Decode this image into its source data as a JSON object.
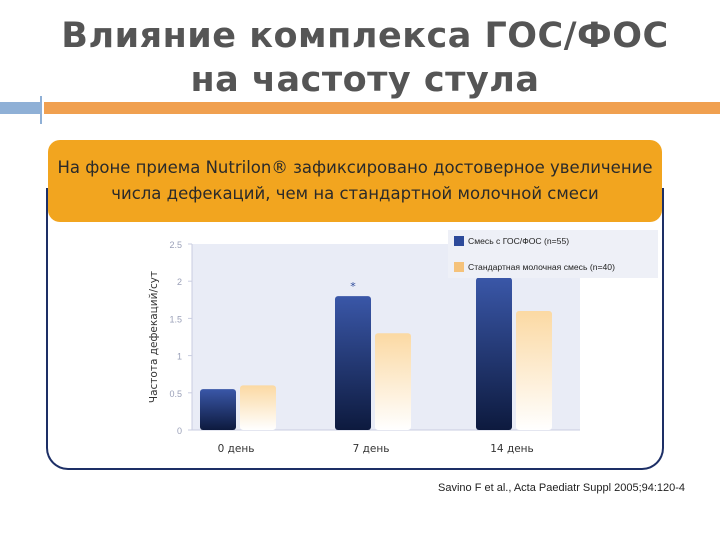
{
  "slide": {
    "title_line1": "Влияние комплекса  ГОС/ФОС",
    "title_line2": "на частоту стула",
    "callout_line1": "На фоне приема Nutrilon® зафиксировано достоверное увеличение",
    "callout_line2": "числа дефекаций, чем на стандартной молочной смеси",
    "citation": "Savino F et al., Acta Paediatr Suppl 2005;94:120-4",
    "colors": {
      "accent_orange": "#f0a050",
      "accent_blue": "#8fb0d6",
      "callout": "#f2a51f",
      "frame": "#1d2f66"
    }
  },
  "chart_data": {
    "type": "bar",
    "categories": [
      "0 день",
      "7 день",
      "14 день"
    ],
    "series": [
      {
        "name": "Смесь с ГОС/ФОС (n=55)",
        "values": [
          0.55,
          1.8,
          2.05
        ],
        "color": "#2d4a9a"
      },
      {
        "name": "Стандартная молочная смесь (n=40)",
        "values": [
          0.6,
          1.3,
          1.6
        ],
        "color": "#f5c27a"
      }
    ],
    "ylabel": "Частота дефекаций/сут",
    "xlabel": "",
    "ylim": [
      0,
      2.5
    ],
    "yticks": [
      "0",
      "0.5",
      "1",
      "1.5",
      "2",
      "2.5"
    ],
    "annotation": "*",
    "legend_position": "top-right",
    "grid": false
  }
}
